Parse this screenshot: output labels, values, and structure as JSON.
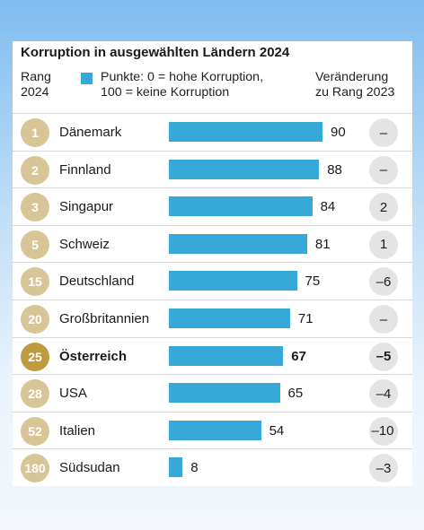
{
  "chart_data": {
    "type": "bar",
    "title": "Korruption in ausgewählten Ländern 2024",
    "header": {
      "rank_line1": "Rang",
      "rank_line2": "2024",
      "legend_line1": "Punkte: 0 = hohe Korruption,",
      "legend_line2": "100 = keine Korruption",
      "change_line1": "Veränderung",
      "change_line2": "zu Rang 2023"
    },
    "xlim": [
      0,
      100
    ],
    "series_color": "#36a9d8",
    "highlight_color": "#bf9a3e",
    "rows": [
      {
        "rank": "1",
        "country": "Dänemark",
        "value": 90,
        "change": "–"
      },
      {
        "rank": "2",
        "country": "Finnland",
        "value": 88,
        "change": "–"
      },
      {
        "rank": "3",
        "country": "Singapur",
        "value": 84,
        "change": "2"
      },
      {
        "rank": "5",
        "country": "Schweiz",
        "value": 81,
        "change": "1"
      },
      {
        "rank": "15",
        "country": "Deutschland",
        "value": 75,
        "change": "–6"
      },
      {
        "rank": "20",
        "country": "Großbritannien",
        "value": 71,
        "change": "–"
      },
      {
        "rank": "25",
        "country": "Österreich",
        "value": 67,
        "change": "–5",
        "highlight": true
      },
      {
        "rank": "28",
        "country": "USA",
        "value": 65,
        "change": "–4"
      },
      {
        "rank": "52",
        "country": "Italien",
        "value": 54,
        "change": "–10"
      },
      {
        "rank": "180",
        "country": "Südsudan",
        "value": 8,
        "change": "–3"
      }
    ]
  }
}
